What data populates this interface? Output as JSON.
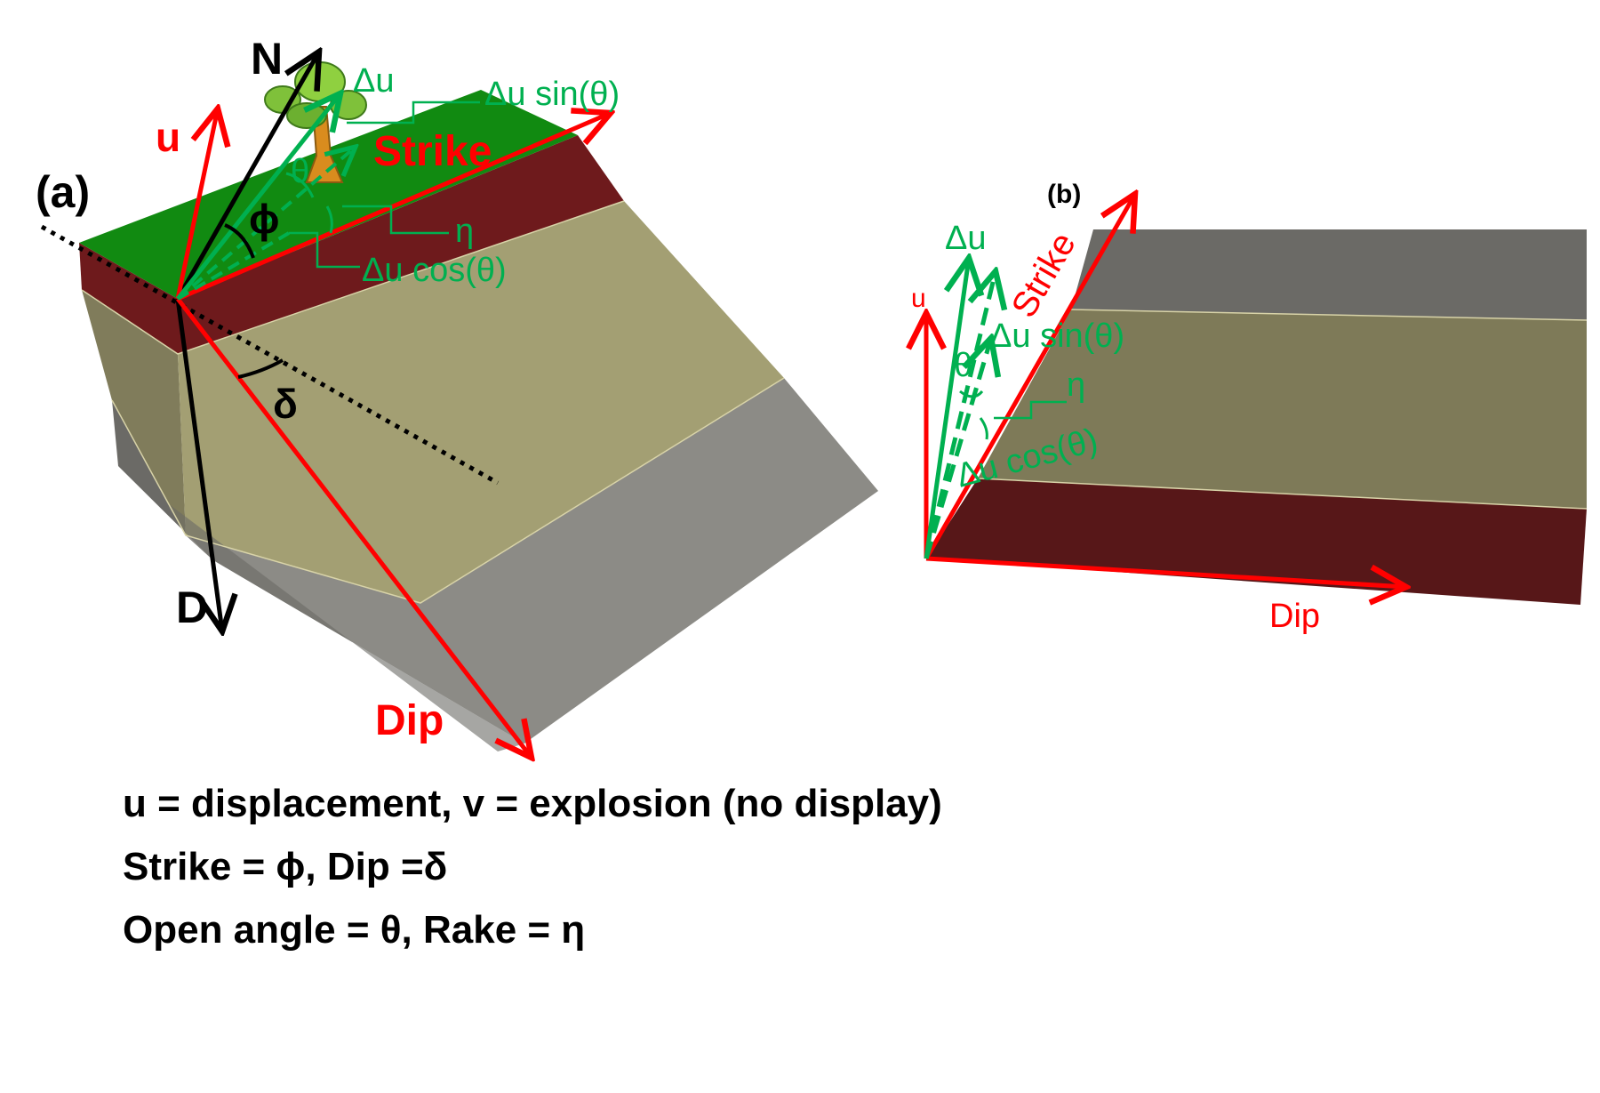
{
  "colors": {
    "arrow_red": "#ff0000",
    "vector_green": "#00b050",
    "ground_green": "#118a11",
    "layer_dark_red": "#6e1a1c",
    "layer_olive": "#a39f73",
    "layer_olive_side": "#807c5b",
    "layer_gray": "#8c8b86",
    "layer_gray_side": "#6b6a66",
    "text_black": "#000000"
  },
  "panel_a": {
    "panel_label": "(a)",
    "north_label": "N",
    "down_label": "D",
    "u_label": "u",
    "delta_u_label": "Δu",
    "strike_label": "Strike",
    "dip_label": "Dip",
    "phi_label": "ϕ",
    "delta_label": "δ",
    "theta_label": "θ",
    "eta_label": "η",
    "delta_u_sin_label": "Δu sin(θ)",
    "delta_u_cos_label": "Δu cos(θ)",
    "tree_icon": "tree-icon"
  },
  "panel_b": {
    "panel_label": "(b)",
    "u_label": "u",
    "delta_u_label": "Δu",
    "strike_label": "Strike",
    "dip_label": "Dip",
    "theta_label": "θ",
    "eta_label": "η",
    "delta_u_sin_label": "Δu sin(θ)",
    "delta_u_cos_label": "Δu cos(θ)"
  },
  "legend": {
    "line1": "u = displacement, v = explosion (no display)",
    "line2": "Strike = ϕ, Dip =δ",
    "line3": "Open angle = θ, Rake = η"
  }
}
